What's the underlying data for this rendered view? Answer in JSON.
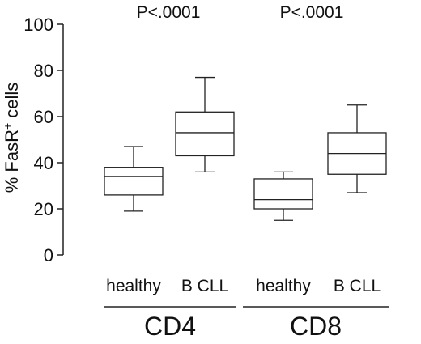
{
  "chart_data": {
    "type": "boxplot",
    "title": "",
    "xlabel": "",
    "ylabel_main": "% FasR",
    "ylabel_sup": "+",
    "ylabel_tail": " cells",
    "ylim": [
      0,
      100
    ],
    "yticks": [
      0,
      20,
      40,
      60,
      80,
      100
    ],
    "grid": false,
    "groups": [
      {
        "name": "CD4",
        "pvalue": "P<.0001"
      },
      {
        "name": "CD8",
        "pvalue": "P<.0001"
      }
    ],
    "boxes": [
      {
        "group": "CD4",
        "label": "healthy",
        "min": 19,
        "q1": 26,
        "median": 34,
        "q3": 38,
        "max": 47
      },
      {
        "group": "CD4",
        "label": "B CLL",
        "min": 36,
        "q1": 43,
        "median": 53,
        "q3": 62,
        "max": 77
      },
      {
        "group": "CD8",
        "label": "healthy",
        "min": 15,
        "q1": 20,
        "median": 24,
        "q3": 33,
        "max": 36
      },
      {
        "group": "CD8",
        "label": "B CLL",
        "min": 27,
        "q1": 35,
        "median": 44,
        "q3": 53,
        "max": 65
      }
    ]
  }
}
